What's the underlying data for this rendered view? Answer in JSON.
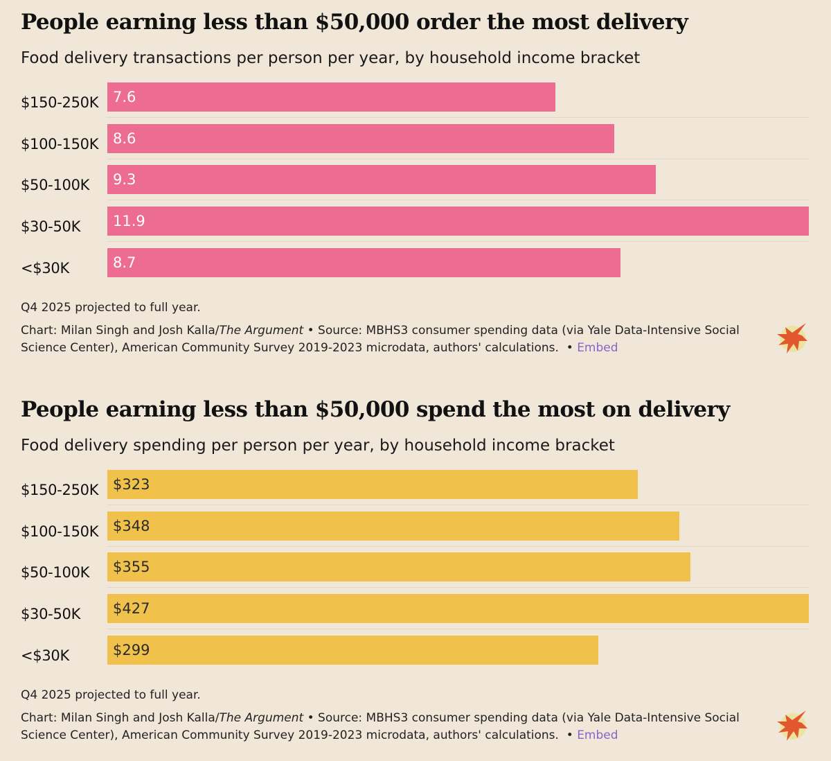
{
  "charts": [
    {
      "title": "People earning less than $50,000 order the most delivery",
      "subtitle": "Food delivery transactions per person per year, by household income bracket",
      "color": "#ec6c92",
      "note": "Q4 2025 projected to full year.",
      "credit_prefix": "Chart: Milan Singh and Josh Kalla/",
      "publication": "The Argument",
      "credit_source": " • Source: MBHS3 consumer spending data (via Yale Data-Intensive Social Science Center), American Community Survey 2019-2023 microdata, authors' calculations.  • ",
      "embed_label": "Embed"
    },
    {
      "title": "People earning less than $50,000 spend the most on delivery",
      "subtitle": "Food delivery spending per person per year, by household income bracket",
      "color": "#f0c24c",
      "note": "Q4 2025 projected to full year.",
      "credit_prefix": "Chart: Milan Singh and Josh Kalla/",
      "publication": "The Argument",
      "credit_source": " • Source: MBHS3 consumer spending data (via Yale Data-Intensive Social Science Center), American Community Survey 2019-2023 microdata, authors' calculations.  • ",
      "embed_label": "Embed"
    }
  ],
  "chart_data": [
    {
      "type": "bar",
      "orientation": "horizontal",
      "title": "People earning less than $50,000 order the most delivery",
      "subtitle": "Food delivery transactions per person per year, by household income bracket",
      "categories": [
        "$150-250K",
        "$100-150K",
        "$50-100K",
        "$30-50K",
        "<$30K"
      ],
      "values": [
        7.6,
        8.6,
        9.3,
        11.9,
        8.7
      ],
      "value_labels": [
        "7.6",
        "8.6",
        "9.3",
        "11.9",
        "8.7"
      ],
      "xlim": [
        0,
        11.9
      ],
      "grid": false,
      "bar_color": "#ec6c92"
    },
    {
      "type": "bar",
      "orientation": "horizontal",
      "title": "People earning less than $50,000 spend the most on delivery",
      "subtitle": "Food delivery spending per person per year, by household income bracket",
      "categories": [
        "$150-250K",
        "$100-150K",
        "$50-100K",
        "$30-50K",
        "<$30K"
      ],
      "values": [
        323,
        348,
        355,
        427,
        299
      ],
      "value_labels": [
        "$323",
        "$348",
        "$355",
        "$427",
        "$299"
      ],
      "xlim": [
        0,
        427
      ],
      "grid": false,
      "bar_color": "#f0c24c"
    }
  ]
}
